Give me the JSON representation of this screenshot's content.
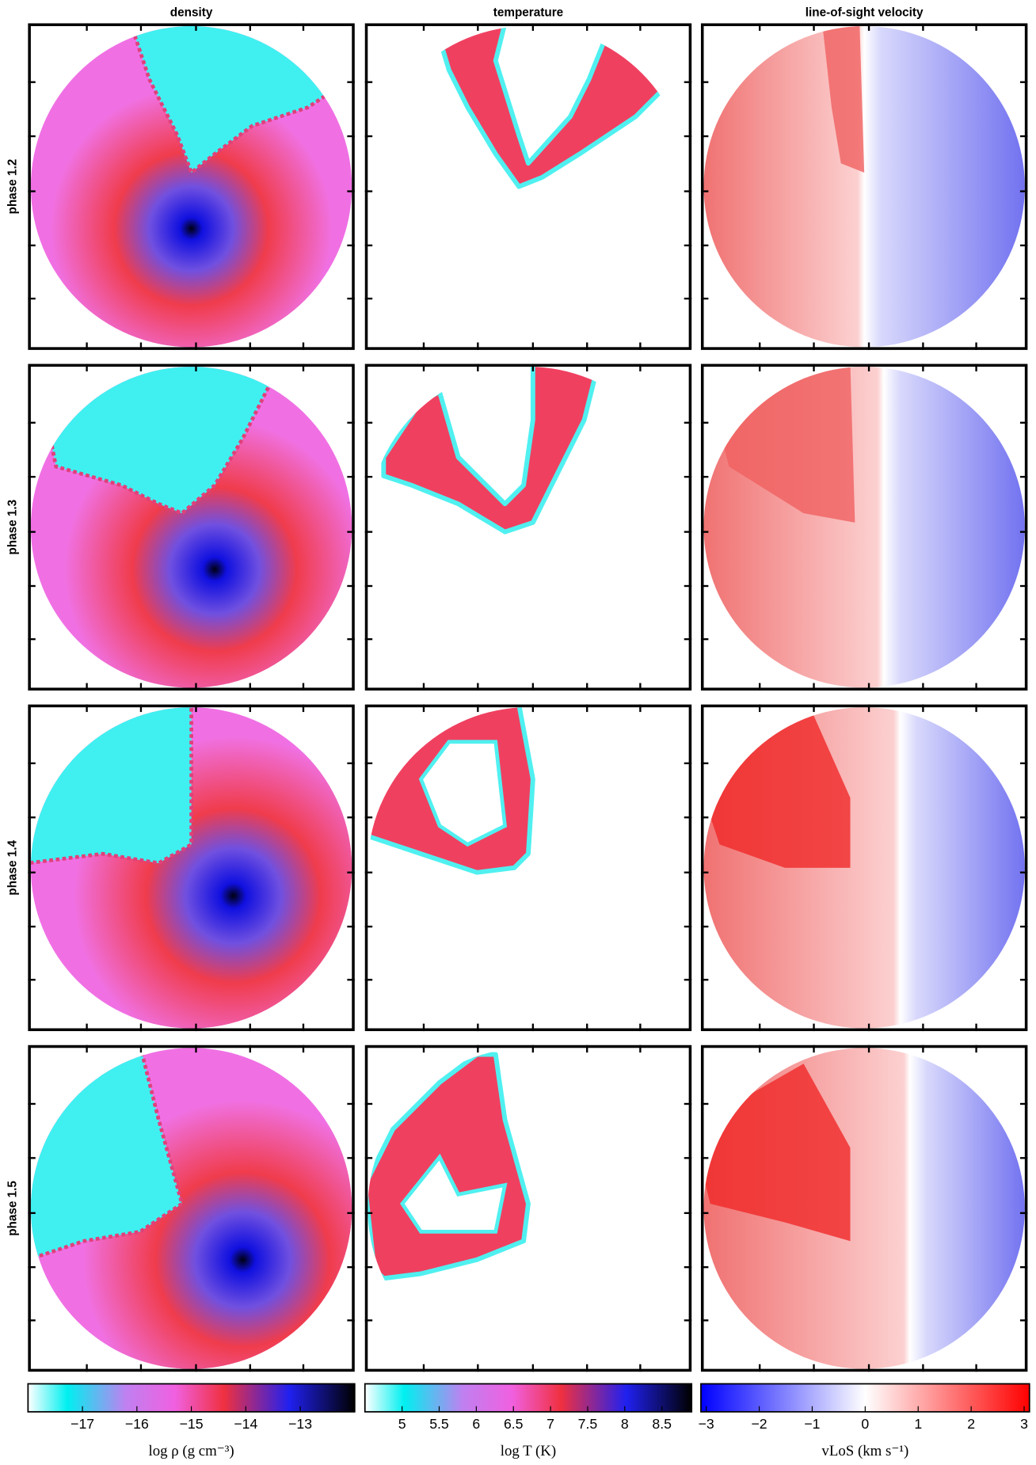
{
  "columns": [
    {
      "title": "density",
      "colorbar": {
        "label": "log ρ (g cm⁻³)",
        "range": [
          -18,
          -12
        ],
        "ticks": [
          {
            "value": -17,
            "label": "−17"
          },
          {
            "value": -16,
            "label": "−16"
          },
          {
            "value": -15,
            "label": "−15"
          },
          {
            "value": -14,
            "label": "−14"
          },
          {
            "value": -13,
            "label": "−13"
          }
        ]
      }
    },
    {
      "title": "temperature",
      "colorbar": {
        "label": "log T (K)",
        "range": [
          4.5,
          8.9
        ],
        "ticks": [
          5,
          5.5,
          6,
          6.5,
          7,
          7.5,
          8,
          8.5
        ]
      }
    },
    {
      "title": "line-of-sight velocity",
      "colorbar": {
        "label": "vLoS (km s⁻¹)",
        "range": [
          -3.1,
          3.1
        ],
        "ticks": [
          {
            "value": -3,
            "label": "−3"
          },
          {
            "value": -2,
            "label": "−2"
          },
          {
            "value": -1,
            "label": "−1"
          },
          0,
          1,
          2,
          3
        ]
      }
    }
  ],
  "rows": [
    "phase 1.2",
    "phase 1.3",
    "phase 1.4",
    "phase 1.5"
  ]
}
